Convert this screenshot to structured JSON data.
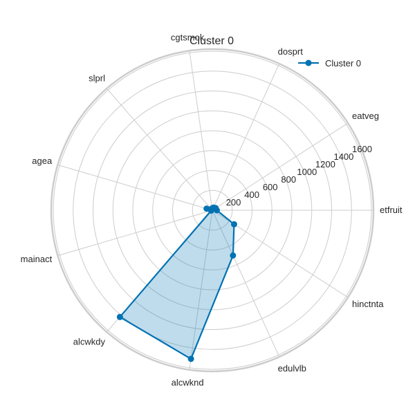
{
  "chart_data": {
    "type": "radar",
    "title": "Cluster 0",
    "axes": [
      "etfruit",
      "eatveg",
      "dosprt",
      "cgtsmok",
      "slprl",
      "agea",
      "mainact",
      "alcwkdy",
      "alcwknd",
      "edulvlb",
      "hinctnta"
    ],
    "radial_ticks": [
      200,
      400,
      600,
      800,
      1000,
      1200,
      1400,
      1600
    ],
    "rmax": 1600,
    "grid": true,
    "legend_position": "top-right",
    "series": [
      {
        "name": "Cluster 0",
        "color": "#0072B2",
        "values": [
          45,
          40,
          30,
          20,
          15,
          60,
          12,
          1420,
          1510,
          500,
          260
        ]
      }
    ]
  }
}
